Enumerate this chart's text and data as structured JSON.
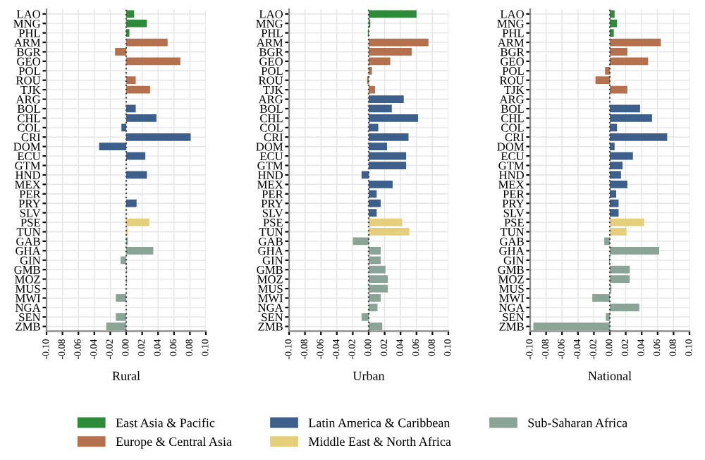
{
  "chart_data": [
    {
      "type": "bar",
      "orientation": "horizontal",
      "xlabel": "Rural",
      "legend": "bottom",
      "grid": true,
      "categories": [
        "LAO",
        "MNG",
        "PHL",
        "ARM",
        "BGR",
        "GEO",
        "POL",
        "ROU",
        "TJK",
        "ARG",
        "BOL",
        "CHL",
        "COL",
        "CRI",
        "DOM",
        "ECU",
        "GTM",
        "HND",
        "MEX",
        "PER",
        "PRY",
        "SLV",
        "PSE",
        "TUN",
        "GAB",
        "GHA",
        "GIN",
        "GMB",
        "MOZ",
        "MUS",
        "MWI",
        "NGA",
        "SEN",
        "ZMB"
      ],
      "xlim": [
        -0.1,
        0.1
      ],
      "xticks": [
        {
          "value": -0.1,
          "label": "-0.10"
        },
        {
          "value": -0.08,
          "label": "-0.08"
        },
        {
          "value": -0.06,
          "label": "-0.06"
        },
        {
          "value": -0.04,
          "label": "-0.04"
        },
        {
          "value": -0.02,
          "label": "-0.02"
        },
        {
          "value": 0,
          "label": "0.00"
        },
        {
          "value": 0.02,
          "label": "0.02"
        },
        {
          "value": 0.04,
          "label": "0.04"
        },
        {
          "value": 0.06,
          "label": "0.06"
        },
        {
          "value": 0.08,
          "label": "0.08"
        },
        {
          "value": 0.1,
          "label": "0.10"
        }
      ],
      "ref_lines": [
        {
          "axis": "x",
          "value": 0,
          "line_style": "dotted",
          "color": "#444444"
        }
      ],
      "series": [
        {
          "name": "East Asia & Pacific",
          "color": "#2e8b3a",
          "values": [
            0.01,
            0.026,
            0.004,
            null,
            null,
            null,
            null,
            null,
            null,
            null,
            null,
            null,
            null,
            null,
            null,
            null,
            null,
            null,
            null,
            null,
            null,
            null,
            null,
            null,
            null,
            null,
            null,
            null,
            null,
            null,
            null,
            null,
            null,
            null
          ]
        },
        {
          "name": "Europe & Central Asia",
          "color": "#b5704d",
          "values": [
            null,
            null,
            null,
            0.052,
            -0.014,
            0.068,
            0.0,
            0.012,
            0.03,
            null,
            null,
            null,
            null,
            null,
            null,
            null,
            null,
            null,
            null,
            null,
            null,
            null,
            null,
            null,
            null,
            null,
            null,
            null,
            null,
            null,
            null,
            null,
            null,
            null
          ]
        },
        {
          "name": "Latin America & Caribbean",
          "color": "#3c5f8c",
          "values": [
            null,
            null,
            null,
            null,
            null,
            null,
            null,
            null,
            null,
            0.0,
            0.012,
            0.038,
            -0.006,
            0.081,
            -0.034,
            0.024,
            0.0,
            0.026,
            0.0,
            0.0,
            0.013,
            0.0,
            null,
            null,
            null,
            null,
            null,
            null,
            null,
            null,
            null,
            null,
            null,
            null
          ]
        },
        {
          "name": "Middle East & North Africa",
          "color": "#e6cf7a",
          "values": [
            null,
            null,
            null,
            null,
            null,
            null,
            null,
            null,
            null,
            null,
            null,
            null,
            null,
            null,
            null,
            null,
            null,
            null,
            null,
            null,
            null,
            null,
            0.029,
            0.002,
            null,
            null,
            null,
            null,
            null,
            null,
            null,
            null,
            null,
            null
          ]
        },
        {
          "name": "Sub-Saharan Africa",
          "color": "#8aa598",
          "values": [
            null,
            null,
            null,
            null,
            null,
            null,
            null,
            null,
            null,
            null,
            null,
            null,
            null,
            null,
            null,
            null,
            null,
            null,
            null,
            null,
            null,
            null,
            null,
            null,
            0.002,
            0.034,
            -0.007,
            0.001,
            0.001,
            null,
            -0.013,
            null,
            -0.013,
            -0.025
          ]
        }
      ]
    },
    {
      "type": "bar",
      "orientation": "horizontal",
      "xlabel": "Urban",
      "grid": true,
      "categories": [
        "LAO",
        "MNG",
        "PHL",
        "ARM",
        "BGR",
        "GEO",
        "POL",
        "ROU",
        "TJK",
        "ARG",
        "BOL",
        "CHL",
        "COL",
        "CRI",
        "DOM",
        "ECU",
        "GTM",
        "HND",
        "MEX",
        "PER",
        "PRY",
        "SLV",
        "PSE",
        "TUN",
        "GAB",
        "GHA",
        "GIN",
        "GMB",
        "MOZ",
        "MUS",
        "MWI",
        "NGA",
        "SEN",
        "ZMB"
      ],
      "xlim": [
        -0.1,
        0.1
      ],
      "xticks": [
        {
          "value": -0.1,
          "label": "-0.10"
        },
        {
          "value": -0.08,
          "label": "-0.08"
        },
        {
          "value": -0.06,
          "label": "-0.06"
        },
        {
          "value": -0.04,
          "label": "-0.04"
        },
        {
          "value": -0.02,
          "label": "-0.02"
        },
        {
          "value": 0,
          "label": "0.00"
        },
        {
          "value": 0.02,
          "label": "0.02"
        },
        {
          "value": 0.04,
          "label": "0.04"
        },
        {
          "value": 0.06,
          "label": "0.06"
        },
        {
          "value": 0.08,
          "label": "0.08"
        },
        {
          "value": 0.1,
          "label": "0.10"
        }
      ],
      "ref_lines": [
        {
          "axis": "x",
          "value": 0,
          "line_style": "dotted",
          "color": "#444444"
        }
      ],
      "series": [
        {
          "color": "#2e8b3a",
          "values": [
            0.06,
            0.002,
            -0.001,
            null,
            null,
            null,
            null,
            null,
            null,
            null,
            null,
            null,
            null,
            null,
            null,
            null,
            null,
            null,
            null,
            null,
            null,
            null,
            null,
            null,
            null,
            null,
            null,
            null,
            null,
            null,
            null,
            null,
            null,
            null
          ]
        },
        {
          "color": "#b5704d",
          "values": [
            null,
            null,
            null,
            0.075,
            0.054,
            0.027,
            0.004,
            -0.002,
            0.008,
            null,
            null,
            null,
            null,
            null,
            null,
            null,
            null,
            null,
            null,
            null,
            null,
            null,
            null,
            null,
            null,
            null,
            null,
            null,
            null,
            null,
            null,
            null,
            null,
            null
          ]
        },
        {
          "color": "#3c5f8c",
          "values": [
            null,
            null,
            null,
            null,
            null,
            null,
            null,
            null,
            null,
            0.044,
            0.029,
            0.062,
            0.012,
            0.05,
            0.023,
            0.047,
            0.047,
            -0.009,
            0.03,
            0.01,
            0.015,
            0.01,
            null,
            null,
            null,
            null,
            null,
            null,
            null,
            null,
            null,
            null,
            null,
            null
          ]
        },
        {
          "color": "#e6cf7a",
          "values": [
            null,
            null,
            null,
            null,
            null,
            null,
            null,
            null,
            null,
            null,
            null,
            null,
            null,
            null,
            null,
            null,
            null,
            null,
            null,
            null,
            null,
            null,
            0.042,
            0.051,
            null,
            null,
            null,
            null,
            null,
            null,
            null,
            null,
            null,
            null
          ]
        },
        {
          "color": "#8aa598",
          "values": [
            null,
            null,
            null,
            null,
            null,
            null,
            null,
            null,
            null,
            null,
            null,
            null,
            null,
            null,
            null,
            null,
            null,
            null,
            null,
            null,
            null,
            null,
            null,
            null,
            -0.02,
            0.015,
            0.015,
            0.021,
            0.024,
            0.024,
            0.015,
            0.011,
            -0.009,
            0.017
          ]
        }
      ]
    },
    {
      "type": "bar",
      "orientation": "horizontal",
      "xlabel": "National",
      "grid": true,
      "categories": [
        "LAO",
        "MNG",
        "PHL",
        "ARM",
        "BGR",
        "GEO",
        "POL",
        "ROU",
        "TJK",
        "ARG",
        "BOL",
        "CHL",
        "COL",
        "CRI",
        "DOM",
        "ECU",
        "GTM",
        "HND",
        "MEX",
        "PER",
        "PRY",
        "SLV",
        "PSE",
        "TUN",
        "GAB",
        "GHA",
        "GIN",
        "GMB",
        "MOZ",
        "MUS",
        "MWI",
        "NGA",
        "SEN",
        "ZMB"
      ],
      "xlim": [
        -0.1,
        0.1
      ],
      "xticks": [
        {
          "value": -0.1,
          "label": "-0.10"
        },
        {
          "value": -0.08,
          "label": "-0.08"
        },
        {
          "value": -0.06,
          "label": "-0.06"
        },
        {
          "value": -0.04,
          "label": "-0.04"
        },
        {
          "value": -0.02,
          "label": "-0.02"
        },
        {
          "value": 0,
          "label": "0.00"
        },
        {
          "value": 0.02,
          "label": "0.02"
        },
        {
          "value": 0.04,
          "label": "0.04"
        },
        {
          "value": 0.06,
          "label": "0.06"
        },
        {
          "value": 0.08,
          "label": "0.08"
        },
        {
          "value": 0.1,
          "label": "0.10"
        }
      ],
      "ref_lines": [
        {
          "axis": "x",
          "value": 0,
          "line_style": "dotted",
          "color": "#444444"
        }
      ],
      "series": [
        {
          "color": "#2e8b3a",
          "values": [
            0.006,
            0.009,
            0.005,
            null,
            null,
            null,
            null,
            null,
            null,
            null,
            null,
            null,
            null,
            null,
            null,
            null,
            null,
            null,
            null,
            null,
            null,
            null,
            null,
            null,
            null,
            null,
            null,
            null,
            null,
            null,
            null,
            null,
            null,
            null
          ]
        },
        {
          "color": "#b5704d",
          "values": [
            null,
            null,
            null,
            0.064,
            0.022,
            0.048,
            -0.006,
            -0.018,
            0.022,
            null,
            null,
            null,
            null,
            null,
            null,
            null,
            null,
            null,
            null,
            null,
            null,
            null,
            null,
            null,
            null,
            null,
            null,
            null,
            null,
            null,
            null,
            null,
            null,
            null
          ]
        },
        {
          "color": "#3c5f8c",
          "values": [
            null,
            null,
            null,
            null,
            null,
            null,
            null,
            null,
            null,
            0.0,
            0.038,
            0.053,
            0.009,
            0.072,
            0.006,
            0.029,
            0.016,
            0.014,
            0.022,
            0.008,
            0.011,
            0.011,
            null,
            null,
            null,
            null,
            null,
            null,
            null,
            null,
            null,
            null,
            null,
            null
          ]
        },
        {
          "color": "#e6cf7a",
          "values": [
            null,
            null,
            null,
            null,
            null,
            null,
            null,
            null,
            null,
            null,
            null,
            null,
            null,
            null,
            null,
            null,
            null,
            null,
            null,
            null,
            null,
            null,
            0.043,
            0.021,
            null,
            null,
            null,
            null,
            null,
            null,
            null,
            null,
            null,
            null
          ]
        },
        {
          "color": "#8aa598",
          "values": [
            null,
            null,
            null,
            null,
            null,
            null,
            null,
            null,
            null,
            null,
            null,
            null,
            null,
            null,
            null,
            null,
            null,
            null,
            null,
            null,
            null,
            null,
            null,
            null,
            -0.007,
            0.062,
            -0.001,
            0.025,
            0.025,
            0.002,
            -0.022,
            0.037,
            -0.005,
            -0.096
          ]
        }
      ]
    }
  ]
}
